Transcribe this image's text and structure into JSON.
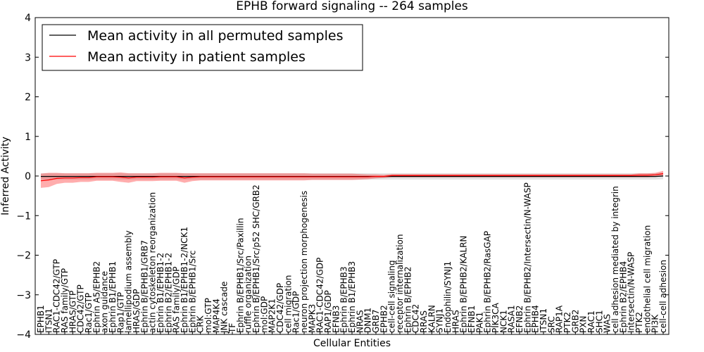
{
  "chart_data": {
    "type": "line",
    "title": "EPHB forward signaling -- 264 samples",
    "xlabel": "Cellular Entities",
    "ylabel": "Inferred Activity",
    "ylim": [
      -4,
      4
    ],
    "yticks": [
      -4,
      -3,
      -2,
      -1,
      0,
      1,
      2,
      3,
      4
    ],
    "grid": false,
    "legend_position": "top-left",
    "categories": [
      "EPHB1",
      "ITSN1",
      "RAC1-CDC42/GTP",
      "RAS family/GTP",
      "HRAS/GTP",
      "CDC42/GTP",
      "Rac1/GTP",
      "Ephrin A5/EPHB2",
      "axon guidance",
      "Ephrin B1/EPHB1",
      "Rap1/GTP",
      "lamellipodium assembly",
      "HRAS/GDP",
      "Ephrin B/EPHB1/GRB7",
      "actin cytoskeleton reorganization",
      "Ephrin B1/EPHB1-2",
      "Ephrin B2/EPHB1-2",
      "RAS family/GDP",
      "Ephrin B1/EPHB1-2/NCK1",
      "Ephrin B/EPHB1/Src",
      "CRK",
      "mol:GTP",
      "MAP4K4",
      "JNK cascade",
      "TF",
      "Ephrin B/EPHB1/Src/Paxillin",
      "ruffle organization",
      "Ephrin B/EPHB1/Src/p52 SHC/GRB2",
      "mol:GDP",
      "MAP2K1",
      "CDC42/GDP",
      "cell migration",
      "Rac1/GDP",
      "neuron projection morphogenesis",
      "MAPK3",
      "RAC1-CDC42/GDP",
      "RAP1/GDP",
      "EFNB3",
      "Ephrin B/EPHB3",
      "Ephrin B1/EPHB3",
      "NRAS",
      "DNM1",
      "GRB7",
      "EPHB2",
      "cell-cell signaling",
      "receptor internalization",
      "Ephrin B/EPHB2",
      "CDC42",
      "RRAS",
      "KALRN",
      "SYNJ1",
      "Endophilin/SYNJ1",
      "HRAS",
      "Ephrin B/EPHB2/KALRN",
      "EFNB1",
      "PAK1",
      "Ephrin B/EPHB2/RasGAP",
      "PIK3CA",
      "NCK1",
      "RASA1",
      "EFNB2",
      "Ephrin B/EPHB2/Intersectin/N-WASP",
      "EPHB4",
      "ITSN1",
      "SRC",
      "RAP1A",
      "PTK2",
      "GRB2",
      "PXN",
      "RAC1",
      "SHC1",
      "WAS",
      "cell adhesion mediated by integrin",
      "Ephrin B2/EPHB4",
      "Intersectin/N-WASP",
      "PTK2",
      "endothelial cell migration",
      "PI3K",
      "cell-cell adhesion"
    ],
    "series": [
      {
        "name": "Mean activity in all permuted samples",
        "color": "#000000",
        "values": [
          -0.01,
          -0.01,
          -0.01,
          -0.01,
          -0.01,
          -0.01,
          -0.01,
          -0.01,
          -0.01,
          -0.01,
          -0.01,
          -0.01,
          -0.01,
          -0.01,
          -0.01,
          -0.01,
          -0.01,
          -0.01,
          -0.01,
          -0.01,
          -0.01,
          -0.01,
          -0.01,
          -0.01,
          -0.01,
          -0.01,
          -0.01,
          -0.01,
          -0.01,
          -0.01,
          -0.01,
          -0.01,
          -0.01,
          -0.01,
          -0.01,
          -0.01,
          -0.01,
          -0.01,
          -0.01,
          -0.01,
          -0.01,
          -0.01,
          -0.01,
          -0.01,
          -0.01,
          -0.01,
          -0.01,
          -0.01,
          -0.01,
          -0.01,
          -0.01,
          -0.01,
          -0.01,
          -0.01,
          -0.01,
          -0.01,
          -0.01,
          -0.01,
          -0.01,
          -0.01,
          -0.01,
          -0.01,
          -0.01,
          -0.01,
          -0.01,
          -0.01,
          -0.01,
          -0.01,
          -0.01,
          -0.01,
          -0.01,
          -0.01,
          -0.01,
          -0.01,
          -0.01,
          -0.01,
          -0.01,
          -0.01,
          0.0
        ],
        "band": [
          0.08,
          0.08,
          0.08,
          0.08,
          0.08,
          0.08,
          0.08,
          0.08,
          0.08,
          0.08,
          0.08,
          0.08,
          0.08,
          0.08,
          0.08,
          0.08,
          0.08,
          0.08,
          0.08,
          0.08,
          0.08,
          0.08,
          0.08,
          0.08,
          0.08,
          0.08,
          0.08,
          0.08,
          0.08,
          0.08,
          0.08,
          0.08,
          0.08,
          0.08,
          0.08,
          0.08,
          0.08,
          0.08,
          0.08,
          0.08,
          0.08,
          0.08,
          0.08,
          0.08,
          0.08,
          0.08,
          0.08,
          0.08,
          0.08,
          0.08,
          0.08,
          0.08,
          0.08,
          0.08,
          0.08,
          0.08,
          0.08,
          0.08,
          0.08,
          0.08,
          0.08,
          0.08,
          0.08,
          0.08,
          0.08,
          0.08,
          0.08,
          0.08,
          0.08,
          0.08,
          0.08,
          0.08,
          0.08,
          0.08,
          0.08,
          0.08,
          0.08,
          0.08,
          0.08
        ]
      },
      {
        "name": "Mean activity in patient samples",
        "color": "#ff0000",
        "values": [
          -0.12,
          -0.1,
          -0.06,
          -0.05,
          -0.05,
          -0.04,
          -0.04,
          -0.02,
          -0.02,
          -0.02,
          -0.03,
          -0.05,
          -0.03,
          -0.03,
          -0.03,
          -0.02,
          -0.02,
          -0.02,
          -0.05,
          -0.03,
          -0.02,
          -0.02,
          -0.02,
          -0.02,
          -0.02,
          -0.02,
          -0.02,
          -0.02,
          -0.02,
          -0.02,
          -0.02,
          -0.02,
          -0.02,
          -0.02,
          -0.02,
          -0.02,
          -0.02,
          -0.02,
          -0.02,
          -0.02,
          -0.02,
          -0.02,
          -0.01,
          -0.01,
          0.01,
          0.01,
          0.01,
          0.01,
          0.01,
          0.01,
          0.01,
          0.01,
          0.01,
          0.01,
          0.01,
          0.01,
          0.01,
          0.01,
          0.01,
          0.01,
          0.01,
          0.01,
          0.01,
          0.01,
          0.01,
          0.01,
          0.01,
          0.01,
          0.01,
          0.01,
          0.01,
          0.01,
          0.01,
          0.01,
          0.01,
          0.02,
          0.02,
          0.03,
          0.06
        ],
        "band": [
          0.18,
          0.18,
          0.14,
          0.12,
          0.12,
          0.11,
          0.11,
          0.1,
          0.1,
          0.1,
          0.12,
          0.12,
          0.1,
          0.1,
          0.1,
          0.1,
          0.1,
          0.1,
          0.12,
          0.1,
          0.09,
          0.09,
          0.09,
          0.09,
          0.09,
          0.09,
          0.09,
          0.09,
          0.09,
          0.09,
          0.09,
          0.09,
          0.09,
          0.09,
          0.08,
          0.08,
          0.08,
          0.08,
          0.08,
          0.08,
          0.07,
          0.06,
          0.05,
          0.04,
          0.04,
          0.04,
          0.04,
          0.04,
          0.04,
          0.04,
          0.04,
          0.04,
          0.04,
          0.04,
          0.04,
          0.04,
          0.04,
          0.04,
          0.04,
          0.04,
          0.04,
          0.04,
          0.04,
          0.04,
          0.04,
          0.04,
          0.04,
          0.04,
          0.04,
          0.04,
          0.04,
          0.04,
          0.04,
          0.04,
          0.04,
          0.05,
          0.05,
          0.05,
          0.07
        ]
      }
    ]
  }
}
